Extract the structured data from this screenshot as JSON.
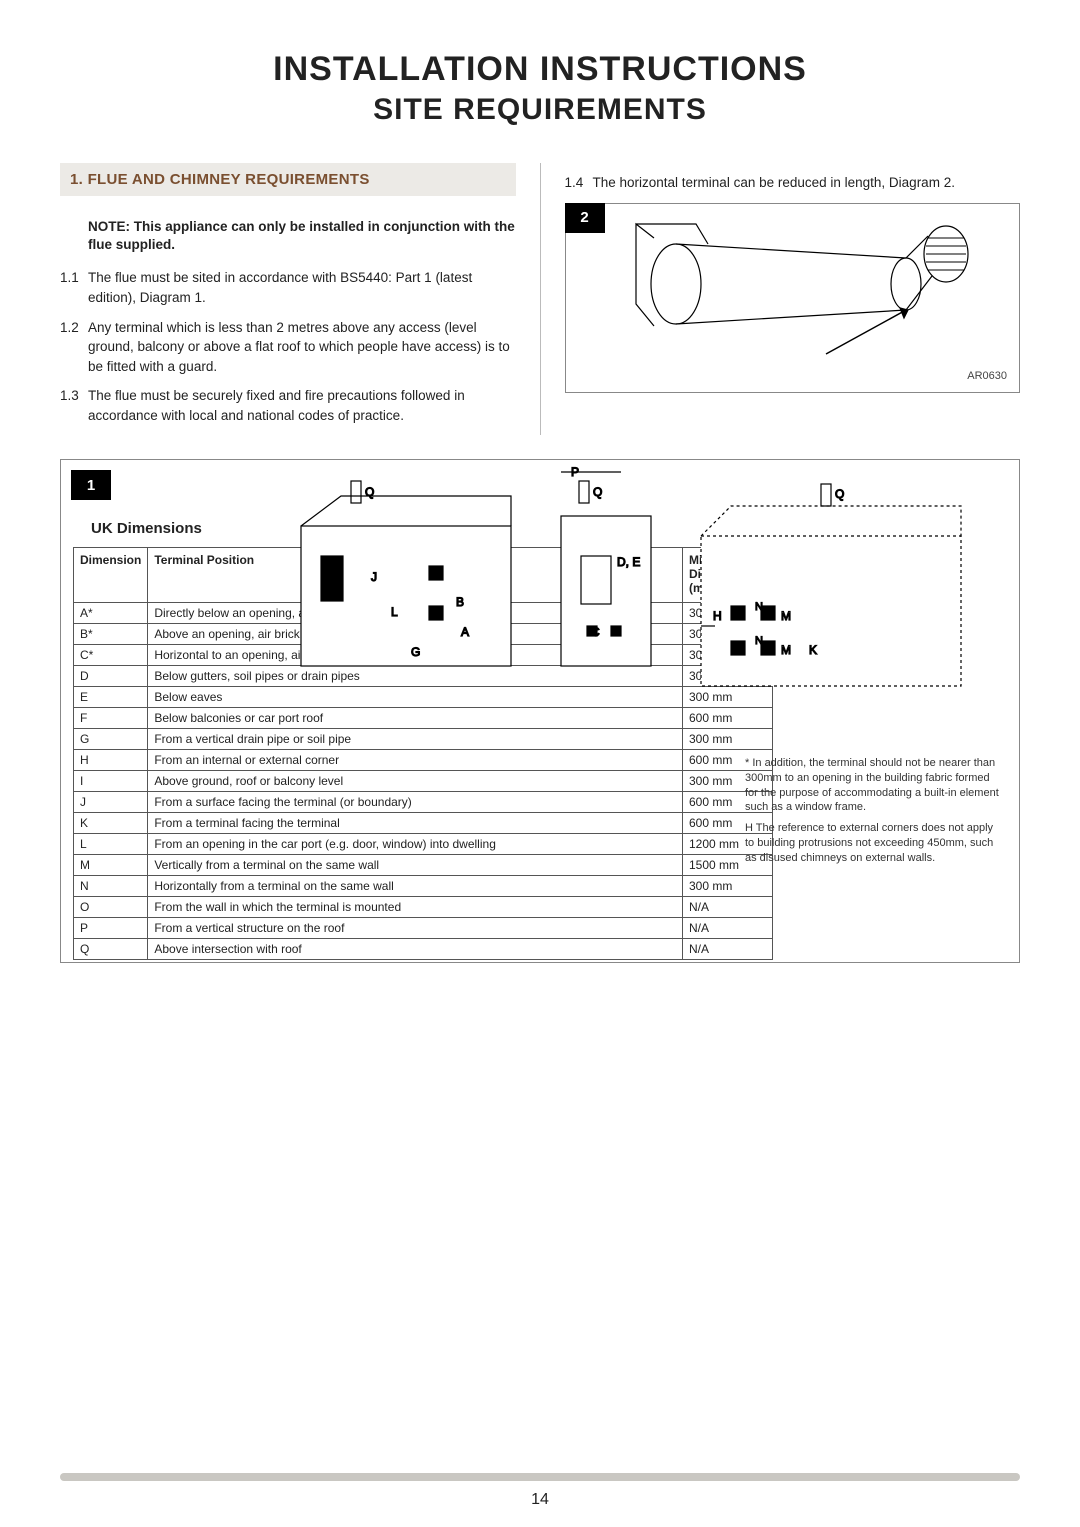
{
  "title": "INSTALLATION INSTRUCTIONS",
  "subtitle": "SITE REQUIREMENTS",
  "section_head": "1. FLUE AND CHIMNEY REQUIREMENTS",
  "note": "NOTE: This appliance can only be installed in conjunction with the flue supplied.",
  "left_items": [
    {
      "n": "1.1",
      "t": "The flue must be sited in accordance with BS5440: Part 1 (latest edition), Diagram 1."
    },
    {
      "n": "1.2",
      "t": "Any terminal which is less than 2 metres above any access (level ground, balcony or above a flat roof to which people have access) is to be fitted with a guard."
    },
    {
      "n": "1.3",
      "t": "The flue must be securely fixed and fire precautions followed in accordance with local and national codes of practice."
    }
  ],
  "right_items": [
    {
      "n": "1.4",
      "t": "The horizontal terminal can be reduced in length, Diagram 2."
    }
  ],
  "fig2_code": "AR0630",
  "fig1_num": "1",
  "fig2_num": "2",
  "uk_label": "UK Dimensions",
  "table_headers": {
    "dim": "Dimension",
    "pos": "Terminal Position",
    "dist": "Minimum Distance (mm)"
  },
  "rows": [
    {
      "d": "A*",
      "p": "Directly below an opening, air brick, opening widows etc",
      "m": "300 mm"
    },
    {
      "d": "B*",
      "p": "Above an opening, air brick, opening windows etc.",
      "m": "300 mm"
    },
    {
      "d": "C*",
      "p": "Horizontal to an opening, air brick, opening windows etc.",
      "m": "300 mm"
    },
    {
      "d": "D",
      "p": "Below gutters, soil pipes or drain pipes",
      "m": "300 mm"
    },
    {
      "d": "E",
      "p": "Below eaves",
      "m": "300 mm"
    },
    {
      "d": "F",
      "p": "Below balconies or car port roof",
      "m": "600 mm"
    },
    {
      "d": "G",
      "p": "From a vertical drain pipe or soil pipe",
      "m": "300 mm"
    },
    {
      "d": "H",
      "p": "From an internal or external corner",
      "m": "600 mm"
    },
    {
      "d": "I",
      "p": "Above ground, roof or balcony level",
      "m": "300 mm"
    },
    {
      "d": "J",
      "p": "From a surface facing the terminal (or boundary)",
      "m": "600 mm"
    },
    {
      "d": "K",
      "p": "From a terminal facing the terminal",
      "m": "600 mm"
    },
    {
      "d": "L",
      "p": "From an opening in the car port (e.g. door, window) into dwelling",
      "m": "1200 mm"
    },
    {
      "d": "M",
      "p": "Vertically from a terminal on the same wall",
      "m": "1500 mm"
    },
    {
      "d": "N",
      "p": "Horizontally from a terminal on the same wall",
      "m": "300 mm"
    },
    {
      "d": "O",
      "p": "From the wall in which the terminal is mounted",
      "m": "N/A"
    },
    {
      "d": "P",
      "p": "From a vertical structure on the roof",
      "m": "N/A"
    },
    {
      "d": "Q",
      "p": "Above intersection with roof",
      "m": "N/A"
    }
  ],
  "footnote1": "* In addition, the terminal should not be nearer than 300mm to an opening in the building fabric formed for the purpose of accommodating a built-in element such as a window frame.",
  "footnote2_prefix": "H",
  "footnote2_rest": " The reference to external corners does not apply to building protrusions not exceeding 450mm, such as disused chimneys on  external walls.",
  "pagenum": "14"
}
